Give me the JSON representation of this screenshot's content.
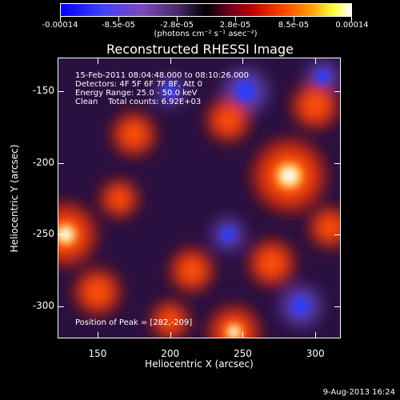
{
  "colorbar": {
    "labels": [
      "-0.00014",
      "-8.5e-05",
      "-2.8e-05",
      "2.8e-05",
      "8.5e-05",
      "0.00014"
    ],
    "units": "(photons cm⁻² s⁻¹ asec⁻²)"
  },
  "chart_data": {
    "type": "heatmap",
    "title": "Reconstructed RHESSI Image",
    "xlabel": "Heliocentric X (arcsec)",
    "ylabel": "Heliocentric Y (arcsec)",
    "xlim": [
      123,
      317
    ],
    "ylim": [
      -322,
      -127
    ],
    "xticks": [
      150,
      200,
      250,
      300
    ],
    "yticks": [
      -150,
      -200,
      -250,
      -300
    ],
    "colorscale_range": [
      -0.00014,
      0.00014
    ],
    "peak": {
      "x": 282,
      "y": -209
    },
    "hotspots": [
      {
        "x": 282,
        "y": -209,
        "intensity": 1.0
      },
      {
        "x": 128,
        "y": -250,
        "intensity": 0.8
      },
      {
        "x": 175,
        "y": -180,
        "intensity": 0.45
      },
      {
        "x": 240,
        "y": -170,
        "intensity": 0.45
      },
      {
        "x": 300,
        "y": -160,
        "intensity": 0.5
      },
      {
        "x": 150,
        "y": -290,
        "intensity": 0.5
      },
      {
        "x": 215,
        "y": -275,
        "intensity": 0.45
      },
      {
        "x": 270,
        "y": -270,
        "intensity": 0.5
      },
      {
        "x": 244,
        "y": -318,
        "intensity": 0.6
      },
      {
        "x": 165,
        "y": -225,
        "intensity": 0.35
      },
      {
        "x": 310,
        "y": -245,
        "intensity": 0.4
      },
      {
        "x": 200,
        "y": -310,
        "intensity": 0.35
      }
    ],
    "coldspots": [
      {
        "x": 252,
        "y": -150,
        "intensity": 0.7
      },
      {
        "x": 290,
        "y": -300,
        "intensity": 0.6
      },
      {
        "x": 240,
        "y": -250,
        "intensity": 0.4
      },
      {
        "x": 305,
        "y": -140,
        "intensity": 0.4
      },
      {
        "x": 200,
        "y": -150,
        "intensity": 0.3
      }
    ]
  },
  "info": {
    "line1": "15-Feb-2011 08:04:48.000 to 08:10:26.000",
    "line2": "Detectors: 4F 5F 6F 7F 8F, Att 0",
    "line3": "Energy Range: 25.0 - 50.0 keV",
    "line4": "Clean    Total counts: 6.92E+03",
    "peak": "Position of Peak = [282,-209]"
  },
  "timestamp": "9-Aug-2013 16:24",
  "colors": {
    "frame": "#ffffff",
    "background": "#000000"
  }
}
